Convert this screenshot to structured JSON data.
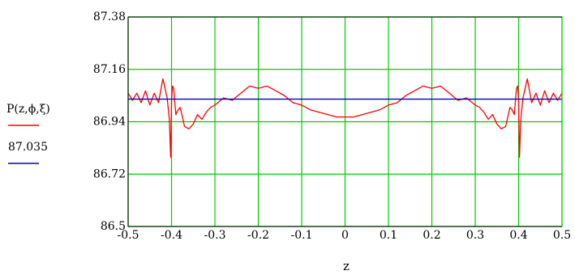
{
  "chart_data": {
    "type": "line",
    "xlabel": "z",
    "ylabel": "",
    "xlim": [
      -0.5,
      0.5
    ],
    "ylim": [
      86.5,
      87.38
    ],
    "x_ticks": [
      "-0.5",
      "-0.4",
      "-0.3",
      "-0.2",
      "-0.1",
      "0",
      "0.1",
      "0.2",
      "0.3",
      "0.4",
      "0.5"
    ],
    "y_ticks": [
      "86.5",
      "86.72",
      "86.94",
      "87.16",
      "87.38"
    ],
    "grid": true,
    "legend_position": "left",
    "colors": {
      "grid": "#00cc00",
      "frame": "#00cc00",
      "series_1": "#ff0000",
      "series_2": "#0000cc"
    },
    "series": [
      {
        "name": "P(z,ϕ,ξ)",
        "color": "#ff0000",
        "x": [
          -0.5,
          -0.49,
          -0.48,
          -0.47,
          -0.46,
          -0.45,
          -0.44,
          -0.43,
          -0.42,
          -0.41,
          -0.405,
          -0.402,
          -0.4,
          -0.398,
          -0.395,
          -0.39,
          -0.385,
          -0.38,
          -0.37,
          -0.36,
          -0.35,
          -0.34,
          -0.33,
          -0.32,
          -0.31,
          -0.3,
          -0.28,
          -0.26,
          -0.24,
          -0.22,
          -0.2,
          -0.18,
          -0.16,
          -0.14,
          -0.12,
          -0.1,
          -0.08,
          -0.06,
          -0.04,
          -0.02,
          0,
          0.02,
          0.04,
          0.06,
          0.08,
          0.1,
          0.12,
          0.14,
          0.16,
          0.18,
          0.2,
          0.22,
          0.24,
          0.26,
          0.28,
          0.3,
          0.31,
          0.32,
          0.33,
          0.34,
          0.35,
          0.36,
          0.37,
          0.38,
          0.385,
          0.39,
          0.395,
          0.398,
          0.4,
          0.402,
          0.405,
          0.41,
          0.42,
          0.43,
          0.44,
          0.45,
          0.46,
          0.47,
          0.48,
          0.49,
          0.5
        ],
        "values": [
          87.06,
          87.03,
          87.06,
          87.02,
          87.07,
          87.01,
          87.06,
          87.02,
          87.12,
          87.04,
          86.95,
          86.79,
          87.02,
          87.09,
          87.08,
          86.97,
          86.99,
          87.0,
          86.92,
          86.91,
          86.93,
          86.97,
          86.95,
          86.98,
          87.0,
          87.01,
          87.04,
          87.03,
          87.06,
          87.09,
          87.08,
          87.09,
          87.07,
          87.05,
          87.02,
          87.01,
          86.99,
          86.98,
          86.97,
          86.96,
          86.96,
          86.96,
          86.97,
          86.98,
          86.99,
          87.01,
          87.02,
          87.05,
          87.07,
          87.09,
          87.08,
          87.09,
          87.06,
          87.03,
          87.04,
          87.01,
          87.0,
          86.98,
          86.95,
          86.97,
          86.93,
          86.91,
          86.92,
          87.0,
          86.99,
          86.97,
          87.08,
          87.09,
          87.02,
          86.79,
          86.95,
          87.04,
          87.12,
          87.02,
          87.06,
          87.01,
          87.07,
          87.02,
          87.06,
          87.03,
          87.06
        ]
      },
      {
        "name": "87.035",
        "color": "#0000cc",
        "x": [
          -0.5,
          0.5
        ],
        "values": [
          87.035,
          87.035
        ]
      }
    ]
  }
}
